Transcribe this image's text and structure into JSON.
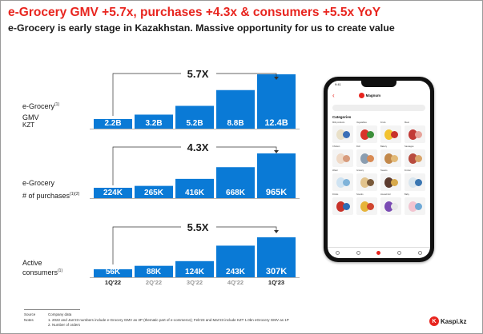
{
  "title": "e-Grocery GMV +5.7x, purchases +4.3x & consumers +5.5x YoY",
  "subtitle": "e-Grocery is early stage in Kazakhstan. Massive opportunity for us to create value",
  "colors": {
    "accent": "#e8251f",
    "bar": "#0a7ad6",
    "text": "#1a1a1a"
  },
  "row_labels": [
    {
      "line1": "e-Grocery",
      "sup1": "(1)",
      "line2": "GMV",
      "line3": "KZT",
      "sup2": ""
    },
    {
      "line1": "e-Grocery",
      "sup1": "",
      "line2": "# of purchases",
      "line3": "",
      "sup2": "(1)(2)"
    },
    {
      "line1": "Active",
      "sup1": "",
      "line2": "consumers",
      "line3": "",
      "sup2": "(1)"
    }
  ],
  "chart_data": [
    {
      "type": "bar",
      "categories": [
        "1Q'22",
        "2Q'22",
        "3Q'22",
        "4Q'22",
        "1Q'23"
      ],
      "values": [
        2.2,
        3.2,
        5.2,
        8.8,
        12.4
      ],
      "value_labels": [
        "2.2B",
        "3.2B",
        "5.2B",
        "8.8B",
        "12.4B"
      ],
      "growth_label": "5.7X",
      "ylim": [
        0,
        13
      ]
    },
    {
      "type": "bar",
      "categories": [
        "1Q'22",
        "2Q'22",
        "3Q'22",
        "4Q'22",
        "1Q'23"
      ],
      "values": [
        224,
        265,
        416,
        668,
        965
      ],
      "value_labels": [
        "224K",
        "265K",
        "416K",
        "668K",
        "965K"
      ],
      "growth_label": "4.3X",
      "ylim": [
        0,
        1000
      ]
    },
    {
      "type": "bar",
      "categories": [
        "1Q'22",
        "2Q'22",
        "3Q'22",
        "4Q'22",
        "1Q'23"
      ],
      "values": [
        56,
        88,
        124,
        243,
        307
      ],
      "value_labels": [
        "56K",
        "88K",
        "124K",
        "243K",
        "307K"
      ],
      "growth_label": "5.5X",
      "ylim": [
        0,
        320
      ]
    }
  ],
  "x_axis": {
    "labels": [
      "1Q'22",
      "2Q'22",
      "3Q'22",
      "4Q'22",
      "1Q'23"
    ],
    "emphasized": [
      true,
      false,
      false,
      false,
      true
    ]
  },
  "footnotes": [
    {
      "key": "Source",
      "text": "Company data"
    },
    {
      "key": "Notes",
      "text": "1. 2022 and Jan'23 numbers include e-Grocery GMV as 3P (thematic part of e-commerce); Feb'23 and Mar'23 include KZT 1.0bn eGrocery GMV as 1P"
    },
    {
      "key": "",
      "text": "2. Number of orders"
    }
  ],
  "brand": {
    "mark": "K",
    "name": "Kaspi.kz"
  },
  "phone": {
    "status_time": "9:41",
    "app_name": "Magnum",
    "categories_title": "Categories",
    "tiles": [
      {
        "label": "Milk products",
        "icon": "dairy-icon",
        "c1": "#e9e0c8",
        "c2": "#3b6fb6"
      },
      {
        "label": "Vegetables",
        "icon": "vegetables-icon",
        "c1": "#d8342b",
        "c2": "#3c8f3a"
      },
      {
        "label": "Fruits",
        "icon": "fruits-icon",
        "c1": "#f2c230",
        "c2": "#c8322a"
      },
      {
        "label": "Meat",
        "icon": "meat-icon",
        "c1": "#c23a36",
        "c2": "#e7a39a"
      },
      {
        "label": "Chicken",
        "icon": "chicken-icon",
        "c1": "#efd9c6",
        "c2": "#d79b7c"
      },
      {
        "label": "Fish",
        "icon": "fish-icon",
        "c1": "#8a9db0",
        "c2": "#d98a53"
      },
      {
        "label": "Bakery",
        "icon": "bakery-icon",
        "c1": "#c2884a",
        "c2": "#e2b977"
      },
      {
        "label": "Sausages",
        "icon": "sausages-icon",
        "c1": "#b84b3e",
        "c2": "#d9a56a"
      },
      {
        "label": "Water",
        "icon": "water-icon",
        "c1": "#cfe3f2",
        "c2": "#7fb3d9"
      },
      {
        "label": "Grocery",
        "icon": "grocery-icon",
        "c1": "#e2c38c",
        "c2": "#7a5a3a"
      },
      {
        "label": "Sweets",
        "icon": "sweets-icon",
        "c1": "#5c3b2e",
        "c2": "#d7a94b"
      },
      {
        "label": "Frozen",
        "icon": "frozen-icon",
        "c1": "#d9e6ef",
        "c2": "#3a76b2"
      },
      {
        "label": "Drinks",
        "icon": "drinks-icon",
        "c1": "#c8322a",
        "c2": "#2e6db5"
      },
      {
        "label": "Snacks",
        "icon": "snacks-icon",
        "c1": "#e6b43a",
        "c2": "#d0452f"
      },
      {
        "label": "Household",
        "icon": "household-icon",
        "c1": "#7a4bb3",
        "c2": "#e8e8e8"
      },
      {
        "label": "Baby",
        "icon": "baby-icon",
        "c1": "#f2c4d0",
        "c2": "#6fa9d6"
      }
    ],
    "tabs": [
      "home-tab",
      "search-tab",
      "catalog-tab",
      "cart-tab",
      "profile-tab"
    ]
  }
}
